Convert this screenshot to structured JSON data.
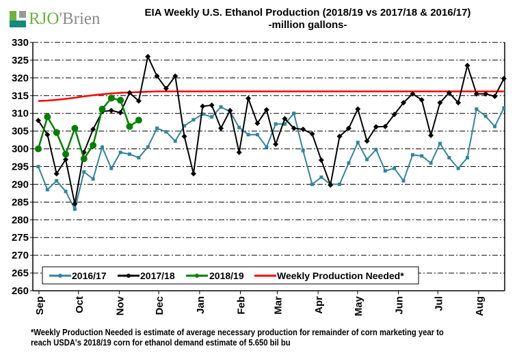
{
  "logo": {
    "text_main": "RJO",
    "text_rest": "'Brien"
  },
  "title_line1": "EIA Weekly U.S. Ethanol Production (2018/19 vs 2017/18 & 2016/17)",
  "title_line2": "-million  gallons-",
  "footnote_line1": "*Weekly Production Needed is estimate of average necessary production for remainder of corn marketing year to",
  "footnote_line2": "reach USDA's 2018/19 corn for ethanol demand estimate of 5.650 bil bu",
  "chart_data": {
    "type": "line",
    "title": "EIA Weekly U.S. Ethanol Production (2018/19 vs 2017/18 & 2016/17)",
    "ylabel": "million gallons",
    "ylim": [
      260,
      330
    ],
    "yticks": [
      260,
      265,
      270,
      275,
      280,
      285,
      290,
      295,
      300,
      305,
      310,
      315,
      320,
      325,
      330
    ],
    "xticks": [
      {
        "label": "Sep",
        "day": 0
      },
      {
        "label": "Oct",
        "day": 30
      },
      {
        "label": "Nov",
        "day": 61
      },
      {
        "label": "Dec",
        "day": 91
      },
      {
        "label": "Jan",
        "day": 122
      },
      {
        "label": "Feb",
        "day": 153
      },
      {
        "label": "Mar",
        "day": 181
      },
      {
        "label": "Apr",
        "day": 212
      },
      {
        "label": "May",
        "day": 242
      },
      {
        "label": "Jun",
        "day": 273
      },
      {
        "label": "Jul",
        "day": 303
      },
      {
        "label": "Aug",
        "day": 334
      }
    ],
    "grid": "horizontal dash-dot",
    "legend": "bottom-left inside",
    "series": [
      {
        "name": "2016/17",
        "color": "#31859c",
        "marker": "square",
        "values": [
          295,
          288.5,
          291,
          288,
          283,
          293.5,
          291.5,
          300.5,
          294.5,
          299,
          298.5,
          297.5,
          300.5,
          305.8,
          304.8,
          302.2,
          306.5,
          308.2,
          309.8,
          309,
          311.8,
          310.5,
          306,
          304,
          304,
          300.5,
          307,
          307,
          310,
          299.5,
          290,
          292,
          290,
          290,
          296,
          301.8,
          297,
          299.8,
          293.8,
          294.5,
          291,
          298.3,
          298,
          296,
          301.5,
          297.5,
          294.5,
          297.5,
          311.2,
          309.2,
          306.3,
          311.5
        ]
      },
      {
        "name": "2017/18",
        "color": "#000000",
        "marker": "diamond",
        "values": [
          308,
          304,
          293,
          297,
          284.5,
          299,
          305.5,
          310.5,
          310.8,
          310.2,
          315.8,
          313.5,
          326,
          320.5,
          317,
          320.5,
          303.5,
          293,
          312,
          312.3,
          305.8,
          310.8,
          299,
          314.2,
          307.2,
          311,
          301.3,
          308.5,
          305.8,
          305.5,
          304.2,
          296.8,
          289.8,
          303.5,
          305.8,
          311.2,
          302.2,
          306.2,
          306.3,
          309.7,
          313,
          315.5,
          313.8,
          303.8,
          313,
          315.8,
          313,
          323.5,
          315.5,
          315.5,
          314.8,
          319.8
        ]
      },
      {
        "name": "2018/19",
        "color": "#008000",
        "marker": "circle",
        "values": [
          300,
          309,
          304.6,
          298.5,
          305.8,
          297.2,
          301,
          311.2,
          314.3,
          313.7,
          306.3,
          308.1
        ]
      },
      {
        "name": "Weekly Production Needed*",
        "color": "#ff0000",
        "marker": "none",
        "values": [
          313.5,
          313.6,
          313.8,
          314.1,
          314.4,
          314.8,
          315.1,
          315.4,
          315.6,
          315.8,
          315.9,
          316,
          316.1,
          316.2,
          316.2,
          316.2,
          316.2,
          316.2,
          316.2,
          316.2,
          316.2,
          316.2,
          316.2,
          316.2,
          316.2,
          316.2,
          316.2,
          316.2,
          316.2,
          316.2,
          316.2,
          316.2,
          316.2,
          316.2,
          316.2,
          316.2,
          316.2,
          316.2,
          316.2,
          316.2,
          316.2,
          316.2,
          316.2,
          316.2,
          316.2,
          316.2,
          316.2,
          316.2,
          316.2,
          316.2,
          316.2,
          316.2
        ]
      }
    ]
  }
}
